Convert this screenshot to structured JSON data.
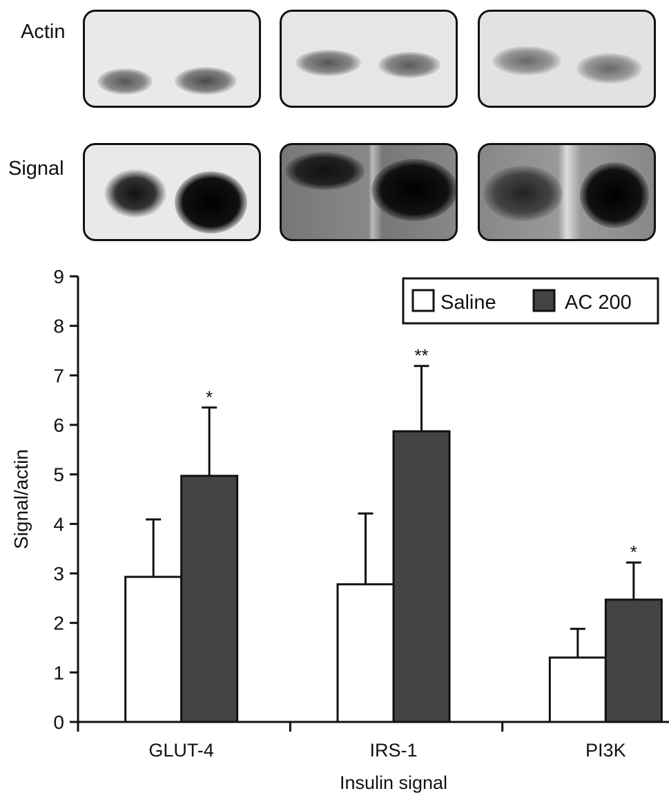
{
  "blots": {
    "row_labels": [
      "Actin",
      "Signal"
    ]
  },
  "chart_data": {
    "type": "bar",
    "title": "",
    "xlabel": "Insulin signal",
    "ylabel": "Signal/actin",
    "ylim": [
      0,
      9
    ],
    "yticks": [
      "0",
      "1",
      "2",
      "3",
      "4",
      "5",
      "6",
      "7",
      "8",
      "9"
    ],
    "categories": [
      "GLUT-4",
      "IRS-1",
      "PI3K"
    ],
    "series": [
      {
        "name": "Saline",
        "color": "#ffffff",
        "values": [
          2.93,
          2.78,
          1.3
        ],
        "error_upper": [
          4.09,
          4.21,
          1.88
        ],
        "significance": [
          "",
          "",
          ""
        ]
      },
      {
        "name": "AC 200",
        "color": "#444444",
        "values": [
          4.97,
          5.87,
          2.47
        ],
        "error_upper": [
          6.35,
          7.19,
          3.22
        ],
        "significance": [
          "*",
          "**",
          "*"
        ]
      }
    ],
    "legend": {
      "position": "top-right"
    },
    "grid": false
  }
}
